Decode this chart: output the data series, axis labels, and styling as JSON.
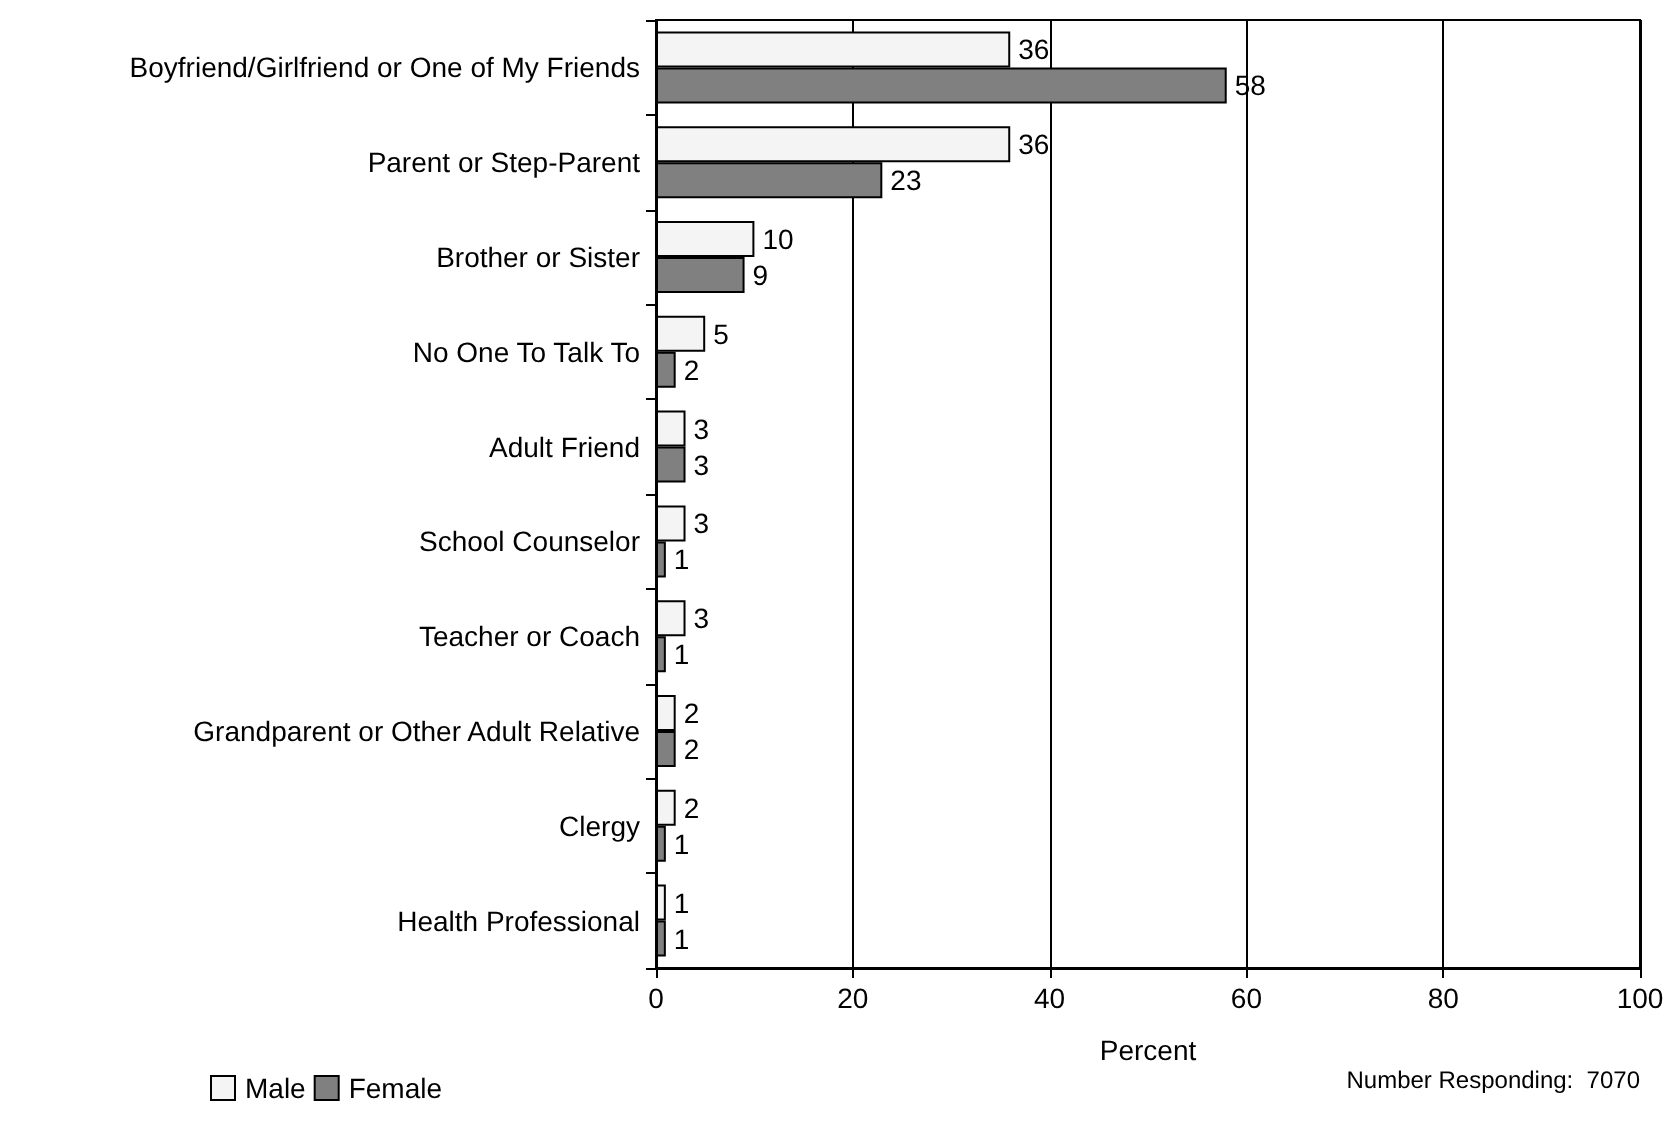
{
  "chart_data": {
    "type": "bar",
    "orientation": "horizontal",
    "xlabel": "Percent",
    "categories": [
      "Boyfriend/Girlfriend or One of My Friends",
      "Parent or Step-Parent",
      "Brother or Sister",
      "No One To Talk To",
      "Adult Friend",
      "School Counselor",
      "Teacher or Coach",
      "Grandparent or Other Adult Relative",
      "Clergy",
      "Health Professional"
    ],
    "series": [
      {
        "name": "Male",
        "color": "#f4f4f4",
        "values": [
          36,
          36,
          10,
          5,
          3,
          3,
          3,
          2,
          2,
          1
        ]
      },
      {
        "name": "Female",
        "color": "#808080",
        "values": [
          58,
          23,
          9,
          2,
          3,
          1,
          1,
          2,
          1,
          1
        ]
      }
    ],
    "xlim": [
      0,
      100
    ],
    "xticks": [
      0,
      20,
      40,
      60,
      80,
      100
    ],
    "grid": "x",
    "legend": "bottom left",
    "data_labels": true,
    "annotations": [
      "Number Responding:  7070"
    ]
  }
}
